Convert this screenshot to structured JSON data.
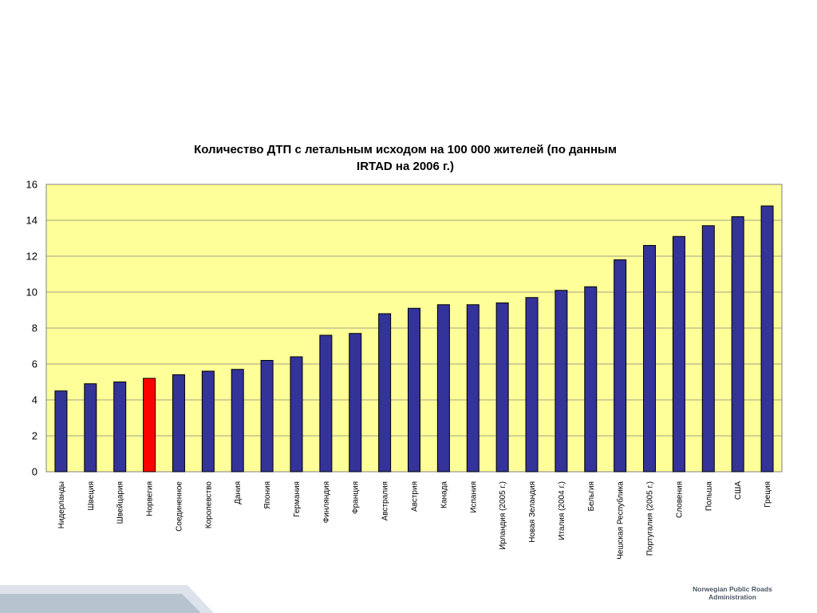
{
  "chart_data": {
    "type": "bar",
    "title_lines": [
      "Количество ДТП с летальным исходом на 100 000 жителей (по данным",
      "IRTAD на 2006 г.)"
    ],
    "categories": [
      "Нидерланды",
      "Швеция",
      "Швейцария",
      "Норвегия",
      "Соединенное",
      "Королевство",
      "Дания",
      "Япония",
      "Германия",
      "Финляндия",
      "Франция",
      "Австралия",
      "Австрия",
      "Канада",
      "Испания",
      "Ирландия (2005 г.)",
      "Новая Зеландия",
      "Италия (2004 г.)",
      "Бельгия",
      "Чешская Республика",
      "Португалия (2005 г.)",
      "Словения",
      "Польша",
      "США",
      "Греция"
    ],
    "values": [
      4.5,
      4.9,
      5.0,
      5.2,
      5.4,
      5.6,
      5.7,
      6.2,
      6.4,
      7.6,
      7.7,
      8.8,
      9.1,
      9.3,
      9.3,
      9.4,
      9.7,
      10.1,
      10.3,
      11.8,
      12.6,
      13.1,
      13.7,
      14.2,
      14.8
    ],
    "highlight_index": 3,
    "bar_color": "#333399",
    "highlight_color": "#ff0000",
    "plot_background": "#ffff99",
    "ylim": [
      0,
      16
    ],
    "yticks": [
      0,
      2,
      4,
      6,
      8,
      10,
      12,
      14,
      16
    ],
    "grid": true,
    "legend": false
  },
  "footer": {
    "brand_lines": [
      "Norwegian Public Roads",
      "Administration"
    ]
  }
}
